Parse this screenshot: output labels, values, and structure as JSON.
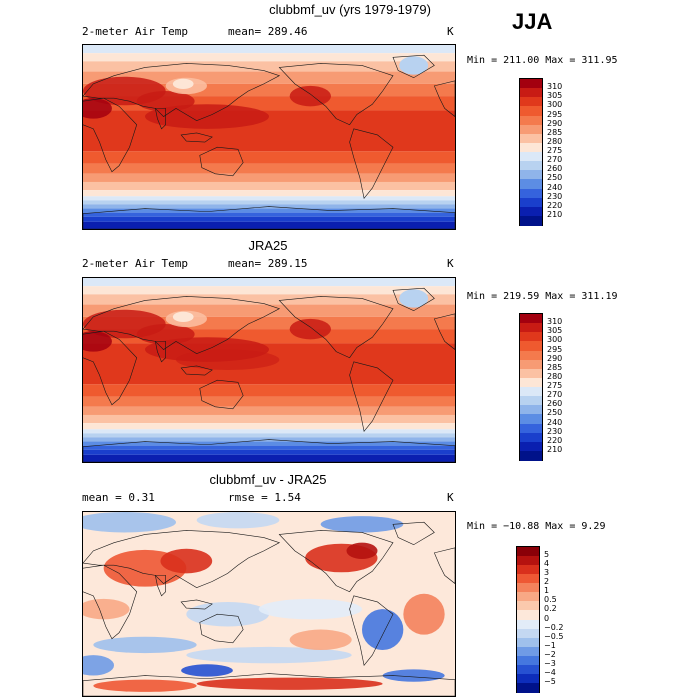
{
  "season": "JJA",
  "panels": [
    {
      "title": "clubbmf_uv (yrs 1979-1979)",
      "left_label": "2-meter Air Temp",
      "mid_label": "mean= 289.46",
      "units": "K",
      "minmax": "Min = 211.00 Max = 311.95",
      "type": "temp",
      "colorbar": {
        "levels": [
          "310",
          "305",
          "300",
          "295",
          "290",
          "285",
          "280",
          "275",
          "270",
          "260",
          "250",
          "240",
          "230",
          "220",
          "210"
        ],
        "colors": [
          "#a3000f",
          "#c81b14",
          "#e0381c",
          "#ef5a2f",
          "#f47a4d",
          "#f79b74",
          "#fbc1a3",
          "#fde6d6",
          "#dbe8f7",
          "#b8d2f0",
          "#8fb4ea",
          "#5c8de4",
          "#3563dd",
          "#1a3fcc",
          "#0a1fb0",
          "#00128a"
        ]
      }
    },
    {
      "title": "JRA25",
      "left_label": "2-meter Air Temp",
      "mid_label": "mean= 289.15",
      "units": "K",
      "minmax": "Min = 219.59 Max = 311.19",
      "type": "temp",
      "colorbar": {
        "levels": [
          "310",
          "305",
          "300",
          "295",
          "290",
          "285",
          "280",
          "275",
          "270",
          "260",
          "250",
          "240",
          "230",
          "220",
          "210"
        ],
        "colors": [
          "#a3000f",
          "#c81b14",
          "#e0381c",
          "#ef5a2f",
          "#f47a4d",
          "#f79b74",
          "#fbc1a3",
          "#fde6d6",
          "#dbe8f7",
          "#b8d2f0",
          "#8fb4ea",
          "#5c8de4",
          "#3563dd",
          "#1a3fcc",
          "#0a1fb0",
          "#00128a"
        ]
      }
    },
    {
      "title": "clubbmf_uv - JRA25",
      "left_label": "mean =    0.31",
      "mid_label": "rmse =    1.54",
      "units": "K",
      "minmax": "Min = −10.88 Max =    9.29",
      "type": "diff",
      "colorbar": {
        "levels": [
          "5",
          "4",
          "3",
          "2",
          "1",
          "0.5",
          "0.2",
          "0",
          "−0.2",
          "−0.5",
          "−1",
          "−2",
          "−3",
          "−4",
          "−5"
        ],
        "colors": [
          "#8a0008",
          "#b5120f",
          "#d9301c",
          "#ee5834",
          "#f4825c",
          "#f8a885",
          "#fbc9ad",
          "#fde8da",
          "#e2ecf8",
          "#c4d8f2",
          "#9fc0ec",
          "#6f9be6",
          "#4577df",
          "#2651d2",
          "#0d2dbb",
          "#00128a"
        ]
      }
    }
  ]
}
